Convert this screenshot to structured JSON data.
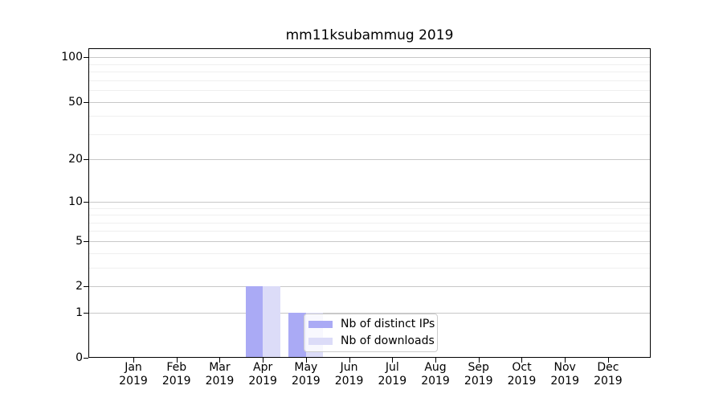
{
  "chart_data": {
    "type": "bar",
    "title": "mm11ksubammug 2019",
    "months": [
      "Jan",
      "Feb",
      "Mar",
      "Apr",
      "May",
      "Jun",
      "Jul",
      "Aug",
      "Sep",
      "Oct",
      "Nov",
      "Dec"
    ],
    "year": "2019",
    "categories": [
      "Jan 2019",
      "Feb 2019",
      "Mar 2019",
      "Apr 2019",
      "May 2019",
      "Jun 2019",
      "Jul 2019",
      "Aug 2019",
      "Sep 2019",
      "Oct 2019",
      "Nov 2019",
      "Dec 2019"
    ],
    "series": [
      {
        "name": "Nb of distinct IPs",
        "color": "#aaaaf5",
        "values": [
          0,
          0,
          0,
          2,
          1,
          0,
          0,
          0,
          0,
          0,
          0,
          0
        ]
      },
      {
        "name": "Nb of downloads",
        "color": "#dcdcf8",
        "values": [
          0,
          0,
          0,
          2,
          1,
          0,
          0,
          0,
          0,
          0,
          0,
          0
        ]
      }
    ],
    "xlabel": "",
    "ylabel": "",
    "y_scale": "log1p",
    "ylim": [
      0,
      115
    ],
    "y_ticks": [
      0,
      1,
      2,
      5,
      10,
      20,
      50,
      100
    ],
    "y_minor_ticks": [
      3,
      4,
      6,
      7,
      8,
      9,
      30,
      40,
      60,
      70,
      80,
      90
    ],
    "grid": "horizontal, major and minor",
    "legend_position": "inside lower-center-right"
  },
  "colors": {
    "major_grid": "#c8c8c8",
    "minor_grid": "#efefef",
    "axis": "#000000",
    "legend_border": "#cccccc"
  }
}
